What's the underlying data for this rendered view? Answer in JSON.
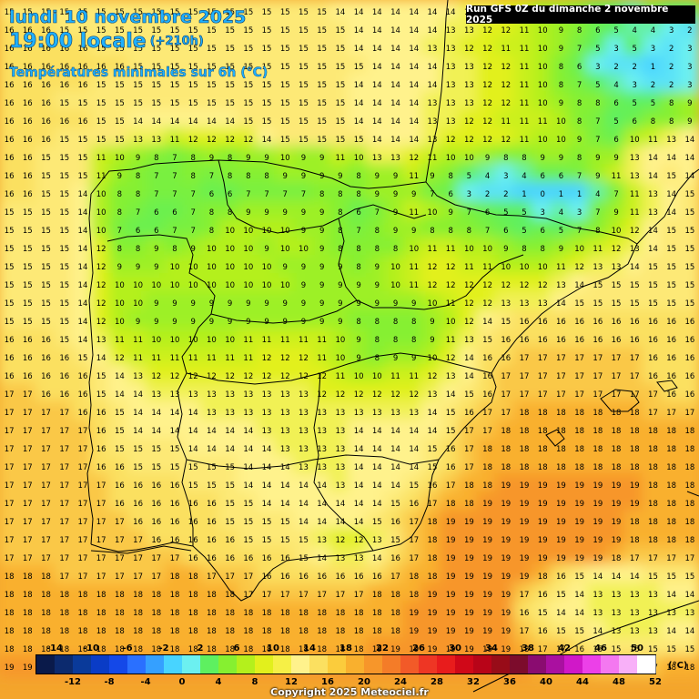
{
  "header": {
    "date_line": "lundi 10 novembre 2025",
    "time_line": "19:00 locale",
    "lead_time": "(+210h)",
    "subtitle": "Températures minimales sur 6h (°C)",
    "run_info": "Run GFS 0Z du dimanche 2 novembre 2025"
  },
  "legend": {
    "unit": "(°C)",
    "colors": [
      "#0a1a4a",
      "#0c2a6e",
      "#0a3a9a",
      "#0a3cc6",
      "#1448e8",
      "#2a70ff",
      "#35a0ff",
      "#48d4ff",
      "#6cf0f0",
      "#5ef060",
      "#86f030",
      "#b4f01c",
      "#e2f01c",
      "#f6f046",
      "#fff28c",
      "#fbe060",
      "#fbcc3c",
      "#f9b02e",
      "#f7962a",
      "#f47c28",
      "#f25a28",
      "#ee3624",
      "#e81c1c",
      "#d00818",
      "#b80418",
      "#980c18",
      "#7c0c2c",
      "#8a0c70",
      "#aa10a0",
      "#d018c8",
      "#ec40e8",
      "#f478f0",
      "#f8b0f8",
      "#ffffff"
    ],
    "top_ticks": [
      "-14",
      "-10",
      "-6",
      "-2",
      "2",
      "6",
      "10",
      "14",
      "18",
      "22",
      "26",
      "30",
      "34",
      "38",
      "42",
      "46",
      "50"
    ],
    "bottom_ticks": [
      "-12",
      "-8",
      "-4",
      "0",
      "4",
      "8",
      "12",
      "16",
      "20",
      "24",
      "28",
      "32",
      "36",
      "40",
      "44",
      "48",
      "52"
    ]
  },
  "footer": {
    "copyright": "Copyright 2025 Meteociel.fr"
  },
  "chart_data": {
    "type": "heatmap",
    "colormap": [
      {
        "t": 1,
        "color": "#48d4ff"
      },
      {
        "t": 3,
        "color": "#6cf0f0"
      },
      {
        "t": 5,
        "color": "#5ef060"
      },
      {
        "t": 8,
        "color": "#86f030"
      },
      {
        "t": 10,
        "color": "#b4f01c"
      },
      {
        "t": 12,
        "color": "#e2f01c"
      },
      {
        "t": 14,
        "color": "#fff28c"
      },
      {
        "t": 16,
        "color": "#fbe060"
      },
      {
        "t": 18,
        "color": "#f9b02e"
      },
      {
        "t": 20,
        "color": "#f47c28"
      }
    ],
    "columns": 38,
    "rows": 37,
    "rows_values": [
      [
        15,
        15,
        15,
        15,
        15,
        15,
        15,
        15,
        15,
        15,
        15,
        15,
        15,
        15,
        15,
        15,
        15,
        15,
        14,
        14,
        14,
        14,
        14,
        14,
        14,
        13,
        13,
        12,
        11,
        9,
        9,
        8,
        6,
        5,
        4,
        7,
        5,
        5
      ],
      [
        16,
        16,
        16,
        15,
        15,
        15,
        15,
        15,
        15,
        15,
        15,
        15,
        15,
        15,
        15,
        15,
        15,
        15,
        15,
        14,
        14,
        14,
        14,
        14,
        13,
        13,
        12,
        12,
        11,
        10,
        9,
        8,
        6,
        5,
        4,
        4,
        3,
        2
      ],
      [
        16,
        16,
        16,
        16,
        16,
        15,
        15,
        15,
        15,
        15,
        15,
        15,
        15,
        15,
        15,
        15,
        15,
        15,
        15,
        14,
        14,
        14,
        14,
        13,
        13,
        12,
        12,
        11,
        11,
        10,
        9,
        7,
        5,
        3,
        5,
        3,
        2,
        3
      ],
      [
        16,
        16,
        16,
        16,
        16,
        16,
        16,
        15,
        15,
        15,
        15,
        15,
        15,
        15,
        15,
        15,
        15,
        15,
        15,
        15,
        14,
        14,
        14,
        14,
        13,
        13,
        12,
        12,
        11,
        10,
        8,
        6,
        3,
        2,
        2,
        1,
        2,
        3
      ],
      [
        16,
        16,
        16,
        16,
        16,
        15,
        15,
        15,
        15,
        15,
        15,
        15,
        15,
        15,
        15,
        15,
        15,
        15,
        15,
        14,
        14,
        14,
        14,
        14,
        13,
        13,
        12,
        12,
        11,
        10,
        8,
        7,
        5,
        4,
        3,
        2,
        2,
        3
      ],
      [
        16,
        16,
        16,
        15,
        15,
        15,
        15,
        15,
        15,
        15,
        15,
        15,
        15,
        15,
        15,
        15,
        15,
        15,
        15,
        14,
        14,
        14,
        14,
        13,
        13,
        13,
        12,
        12,
        11,
        10,
        9,
        8,
        8,
        6,
        5,
        5,
        8,
        9
      ],
      [
        16,
        16,
        16,
        16,
        16,
        15,
        15,
        14,
        14,
        14,
        14,
        14,
        14,
        15,
        15,
        15,
        15,
        15,
        15,
        14,
        14,
        14,
        14,
        13,
        13,
        12,
        12,
        11,
        11,
        11,
        10,
        8,
        7,
        5,
        6,
        8,
        8,
        9
      ],
      [
        16,
        16,
        16,
        15,
        15,
        15,
        15,
        13,
        13,
        11,
        12,
        12,
        12,
        12,
        14,
        15,
        15,
        15,
        15,
        15,
        14,
        14,
        14,
        13,
        12,
        12,
        12,
        12,
        11,
        10,
        10,
        9,
        7,
        6,
        10,
        11,
        13,
        14
      ],
      [
        16,
        16,
        15,
        15,
        15,
        11,
        10,
        9,
        8,
        7,
        8,
        9,
        8,
        9,
        9,
        10,
        9,
        9,
        11,
        10,
        13,
        13,
        12,
        11,
        10,
        10,
        9,
        8,
        8,
        9,
        9,
        8,
        9,
        9,
        13,
        14,
        14,
        14
      ],
      [
        16,
        16,
        15,
        15,
        15,
        11,
        9,
        8,
        7,
        7,
        8,
        7,
        8,
        8,
        8,
        9,
        9,
        9,
        9,
        8,
        9,
        9,
        11,
        9,
        8,
        5,
        4,
        3,
        4,
        6,
        6,
        7,
        9,
        11,
        13,
        14,
        15,
        14
      ],
      [
        16,
        16,
        15,
        15,
        14,
        10,
        8,
        8,
        7,
        7,
        7,
        6,
        6,
        7,
        7,
        7,
        7,
        8,
        8,
        8,
        9,
        9,
        9,
        7,
        6,
        3,
        2,
        2,
        1,
        0,
        1,
        1,
        4,
        7,
        11,
        13,
        14,
        15
      ],
      [
        15,
        15,
        15,
        15,
        14,
        10,
        8,
        7,
        6,
        6,
        7,
        8,
        8,
        9,
        9,
        9,
        9,
        9,
        8,
        6,
        7,
        9,
        11,
        10,
        9,
        7,
        6,
        5,
        5,
        3,
        4,
        3,
        7,
        9,
        11,
        13,
        14,
        15
      ],
      [
        15,
        15,
        15,
        15,
        14,
        10,
        7,
        6,
        6,
        7,
        7,
        8,
        10,
        10,
        10,
        10,
        9,
        9,
        8,
        7,
        8,
        9,
        9,
        8,
        8,
        8,
        7,
        6,
        5,
        6,
        5,
        7,
        8,
        10,
        12,
        14,
        15,
        15
      ],
      [
        15,
        15,
        15,
        15,
        14,
        12,
        8,
        8,
        9,
        8,
        9,
        10,
        10,
        10,
        9,
        10,
        10,
        9,
        8,
        8,
        8,
        8,
        10,
        11,
        11,
        10,
        10,
        9,
        8,
        8,
        9,
        10,
        11,
        12,
        13,
        14,
        15,
        15
      ],
      [
        15,
        15,
        15,
        15,
        14,
        12,
        9,
        9,
        9,
        10,
        10,
        10,
        10,
        10,
        10,
        9,
        9,
        9,
        9,
        8,
        9,
        10,
        11,
        12,
        12,
        11,
        11,
        10,
        10,
        10,
        11,
        12,
        13,
        13,
        14,
        15,
        15,
        15
      ],
      [
        15,
        15,
        15,
        15,
        14,
        12,
        10,
        10,
        10,
        10,
        10,
        10,
        10,
        10,
        10,
        10,
        9,
        9,
        9,
        9,
        9,
        10,
        11,
        12,
        12,
        12,
        12,
        12,
        12,
        12,
        13,
        14,
        15,
        15,
        15,
        15,
        15,
        15
      ],
      [
        15,
        15,
        15,
        15,
        14,
        12,
        10,
        10,
        9,
        9,
        9,
        9,
        9,
        9,
        9,
        9,
        9,
        9,
        9,
        9,
        9,
        9,
        9,
        10,
        11,
        12,
        12,
        13,
        13,
        13,
        14,
        15,
        15,
        15,
        15,
        15,
        15,
        15
      ],
      [
        15,
        15,
        15,
        15,
        14,
        12,
        10,
        9,
        9,
        9,
        9,
        9,
        9,
        9,
        9,
        9,
        9,
        9,
        9,
        8,
        8,
        8,
        8,
        9,
        10,
        12,
        14,
        15,
        16,
        16,
        16,
        16,
        16,
        16,
        16,
        16,
        16,
        16
      ],
      [
        16,
        16,
        16,
        15,
        14,
        13,
        11,
        11,
        10,
        10,
        10,
        10,
        10,
        11,
        11,
        11,
        11,
        11,
        10,
        9,
        8,
        8,
        8,
        9,
        11,
        13,
        15,
        16,
        16,
        16,
        16,
        16,
        16,
        16,
        16,
        16,
        16,
        16
      ],
      [
        16,
        16,
        16,
        16,
        15,
        14,
        12,
        11,
        11,
        11,
        11,
        11,
        11,
        11,
        12,
        12,
        12,
        11,
        10,
        9,
        8,
        9,
        9,
        10,
        12,
        14,
        16,
        16,
        17,
        17,
        17,
        17,
        17,
        17,
        17,
        16,
        16,
        16
      ],
      [
        16,
        16,
        16,
        16,
        16,
        15,
        14,
        13,
        12,
        12,
        12,
        12,
        12,
        12,
        12,
        12,
        12,
        12,
        11,
        10,
        10,
        11,
        11,
        12,
        13,
        14,
        16,
        17,
        17,
        17,
        17,
        17,
        17,
        17,
        17,
        16,
        16,
        16
      ],
      [
        17,
        17,
        16,
        16,
        16,
        15,
        14,
        14,
        13,
        13,
        13,
        13,
        13,
        13,
        13,
        13,
        13,
        12,
        12,
        12,
        12,
        12,
        12,
        13,
        14,
        15,
        16,
        17,
        17,
        17,
        17,
        17,
        17,
        17,
        17,
        17,
        16,
        16
      ],
      [
        17,
        17,
        17,
        17,
        16,
        16,
        15,
        14,
        14,
        14,
        14,
        13,
        13,
        13,
        13,
        13,
        13,
        13,
        13,
        13,
        13,
        13,
        13,
        14,
        15,
        16,
        17,
        17,
        18,
        18,
        18,
        18,
        18,
        18,
        18,
        17,
        17,
        17
      ],
      [
        17,
        17,
        17,
        17,
        17,
        16,
        15,
        14,
        14,
        14,
        14,
        14,
        14,
        14,
        13,
        13,
        13,
        13,
        13,
        14,
        14,
        14,
        14,
        14,
        15,
        17,
        17,
        18,
        18,
        18,
        18,
        18,
        18,
        18,
        18,
        18,
        18,
        18
      ],
      [
        17,
        17,
        17,
        17,
        17,
        16,
        15,
        15,
        15,
        15,
        14,
        14,
        14,
        14,
        14,
        13,
        13,
        13,
        13,
        14,
        14,
        14,
        14,
        15,
        16,
        17,
        18,
        18,
        18,
        18,
        18,
        18,
        18,
        18,
        18,
        18,
        18,
        18
      ],
      [
        17,
        17,
        17,
        17,
        17,
        16,
        16,
        15,
        15,
        15,
        15,
        15,
        15,
        14,
        14,
        14,
        13,
        13,
        13,
        14,
        14,
        14,
        14,
        15,
        16,
        17,
        18,
        18,
        18,
        18,
        18,
        18,
        18,
        18,
        18,
        18,
        18,
        18
      ],
      [
        17,
        17,
        17,
        17,
        17,
        17,
        16,
        16,
        16,
        16,
        15,
        15,
        15,
        14,
        14,
        14,
        14,
        14,
        13,
        14,
        14,
        14,
        15,
        16,
        17,
        18,
        18,
        19,
        19,
        19,
        19,
        19,
        19,
        19,
        19,
        18,
        18,
        18
      ],
      [
        17,
        17,
        17,
        17,
        17,
        17,
        16,
        16,
        16,
        16,
        16,
        16,
        15,
        15,
        14,
        14,
        14,
        14,
        14,
        14,
        14,
        15,
        16,
        17,
        18,
        18,
        19,
        19,
        19,
        19,
        19,
        19,
        19,
        19,
        19,
        18,
        18,
        18
      ],
      [
        17,
        17,
        17,
        17,
        17,
        17,
        17,
        16,
        16,
        16,
        16,
        16,
        15,
        15,
        15,
        15,
        14,
        14,
        14,
        14,
        15,
        16,
        17,
        18,
        19,
        19,
        19,
        19,
        19,
        19,
        19,
        19,
        19,
        19,
        18,
        18,
        18,
        18
      ],
      [
        17,
        17,
        17,
        17,
        17,
        17,
        17,
        17,
        16,
        16,
        16,
        16,
        16,
        15,
        15,
        15,
        15,
        13,
        12,
        12,
        13,
        15,
        17,
        18,
        19,
        19,
        19,
        19,
        19,
        19,
        19,
        19,
        19,
        19,
        18,
        18,
        18,
        18
      ],
      [
        17,
        17,
        17,
        17,
        17,
        17,
        17,
        17,
        17,
        17,
        16,
        16,
        16,
        16,
        16,
        16,
        15,
        14,
        13,
        13,
        14,
        16,
        17,
        18,
        19,
        19,
        19,
        19,
        19,
        19,
        19,
        19,
        19,
        18,
        17,
        17,
        17,
        17
      ],
      [
        18,
        18,
        18,
        17,
        17,
        17,
        17,
        17,
        17,
        18,
        18,
        17,
        17,
        17,
        16,
        16,
        16,
        16,
        16,
        16,
        16,
        17,
        18,
        18,
        19,
        19,
        19,
        19,
        19,
        18,
        16,
        15,
        14,
        14,
        14,
        15,
        15,
        15
      ],
      [
        18,
        18,
        18,
        18,
        18,
        18,
        18,
        18,
        18,
        18,
        18,
        18,
        18,
        17,
        17,
        17,
        17,
        17,
        17,
        17,
        18,
        18,
        18,
        19,
        19,
        19,
        19,
        19,
        17,
        16,
        15,
        14,
        13,
        13,
        13,
        13,
        14,
        14
      ],
      [
        18,
        18,
        18,
        18,
        18,
        18,
        18,
        18,
        18,
        18,
        18,
        18,
        18,
        18,
        18,
        18,
        18,
        18,
        18,
        18,
        18,
        18,
        19,
        19,
        19,
        19,
        19,
        19,
        16,
        15,
        14,
        14,
        13,
        13,
        13,
        13,
        13,
        13
      ],
      [
        18,
        18,
        18,
        18,
        18,
        18,
        18,
        18,
        18,
        18,
        18,
        18,
        18,
        18,
        18,
        18,
        18,
        18,
        18,
        18,
        18,
        18,
        19,
        19,
        19,
        19,
        19,
        19,
        17,
        16,
        15,
        15,
        14,
        13,
        13,
        13,
        14,
        14
      ],
      [
        18,
        18,
        18,
        18,
        18,
        18,
        18,
        18,
        18,
        18,
        18,
        18,
        18,
        18,
        18,
        18,
        18,
        18,
        18,
        18,
        19,
        19,
        19,
        19,
        19,
        19,
        19,
        19,
        18,
        17,
        17,
        16,
        15,
        15,
        15,
        15,
        15,
        15
      ],
      [
        19,
        19,
        19,
        19,
        19,
        19,
        19,
        19,
        19,
        19,
        19,
        19,
        19,
        19,
        19,
        19,
        19,
        19,
        19,
        19,
        19,
        19,
        19,
        19,
        19,
        19,
        19,
        19,
        19,
        18,
        18,
        18,
        17,
        17,
        17,
        17,
        18,
        18
      ]
    ]
  }
}
